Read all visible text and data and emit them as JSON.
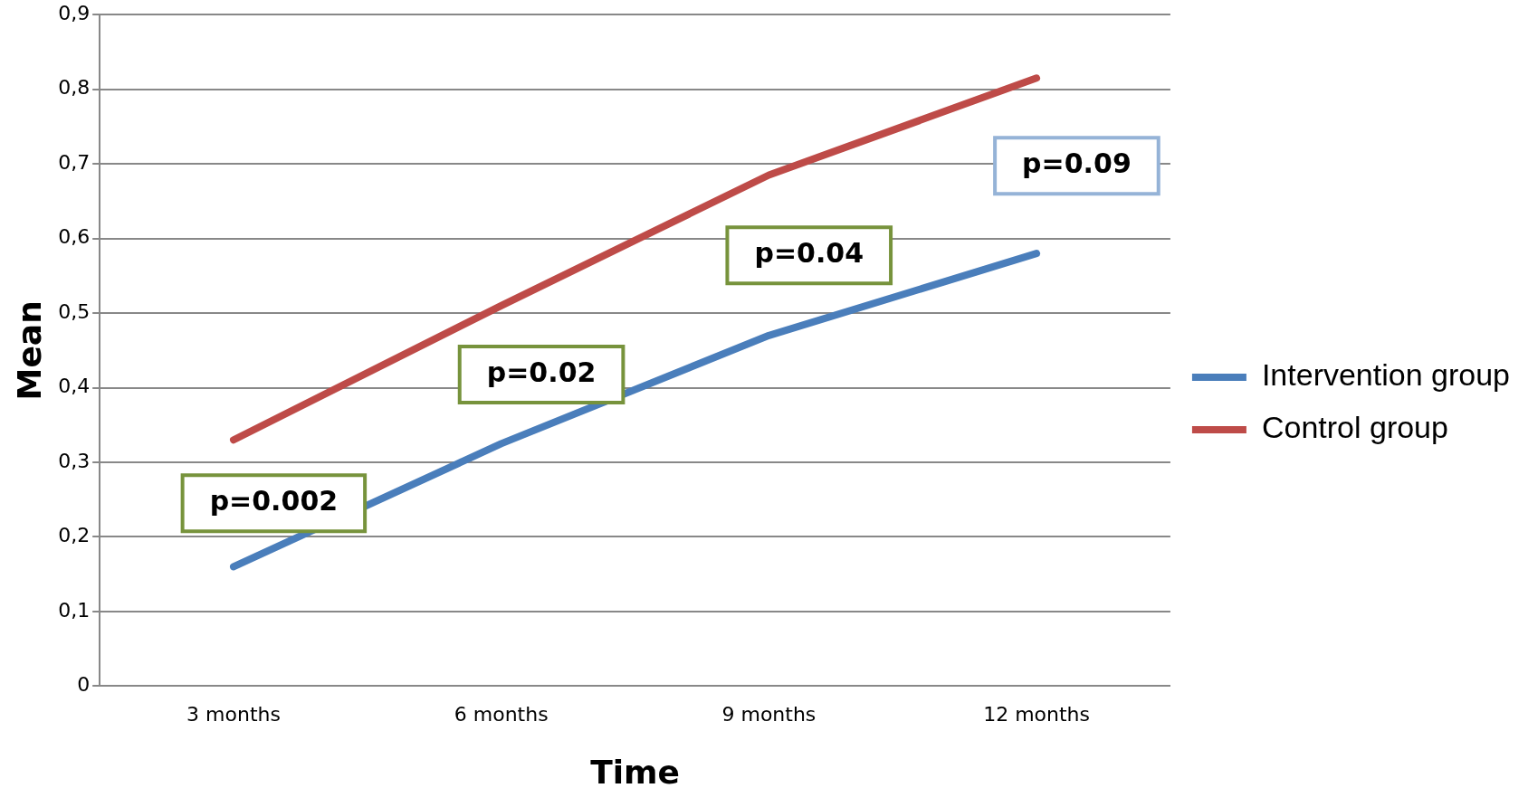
{
  "chart_data": {
    "type": "line",
    "xlabel": "Time",
    "ylabel": "Mean",
    "categories": [
      "3 months",
      "6 months",
      "9 months",
      "12 months"
    ],
    "series": [
      {
        "name": "Intervention group",
        "color": "#4a7ebb",
        "values": [
          0.16,
          0.325,
          0.47,
          0.58
        ]
      },
      {
        "name": "Control group",
        "color": "#be4b48",
        "values": [
          0.33,
          0.51,
          0.685,
          0.815
        ]
      }
    ],
    "ylim": [
      0,
      0.9
    ],
    "yticks": [
      0,
      {
        "value": 0.1,
        "label": "0,1"
      },
      {
        "value": 0.2,
        "label": "0,2"
      },
      {
        "value": 0.3,
        "label": "0,3"
      },
      {
        "value": 0.4,
        "label": "0,4"
      },
      {
        "value": 0.5,
        "label": "0,5"
      },
      {
        "value": 0.6,
        "label": "0,6"
      },
      {
        "value": 0.7,
        "label": "0,7"
      },
      {
        "value": 0.8,
        "label": "0,8"
      },
      {
        "value": 0.9,
        "label": "0,9"
      }
    ],
    "annotations": [
      "p=0.002",
      "p=0.02",
      "p=0.04",
      "p=0.09"
    ],
    "grid": "y",
    "legend": "right",
    "marker": "none",
    "line_style": "solid"
  }
}
